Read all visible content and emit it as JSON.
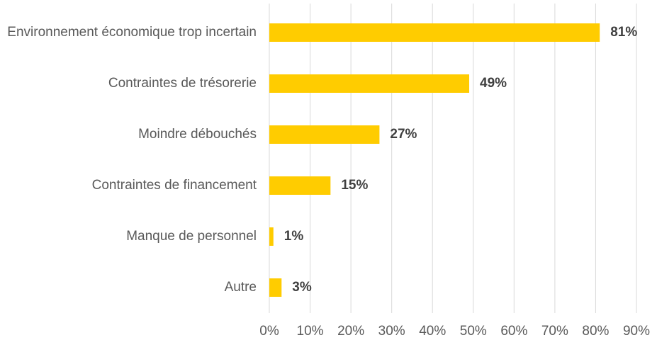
{
  "chart_data": {
    "type": "bar",
    "orientation": "horizontal",
    "categories": [
      "Environnement économique trop incertain",
      "Contraintes de trésorerie",
      "Moindre débouchés",
      "Contraintes de financement",
      "Manque de personnel",
      "Autre"
    ],
    "values": [
      81,
      49,
      27,
      15,
      1,
      3
    ],
    "value_labels": [
      "81%",
      "49%",
      "27%",
      "15%",
      "1%",
      "3%"
    ],
    "color": "#ffcc00",
    "xlim": [
      0,
      90
    ],
    "xticks": [
      {
        "value": 0,
        "label": "0%"
      },
      {
        "value": 10,
        "label": "10%"
      },
      {
        "value": 20,
        "label": "20%"
      },
      {
        "value": 30,
        "label": "30%"
      },
      {
        "value": 40,
        "label": "40%"
      },
      {
        "value": 50,
        "label": "50%"
      },
      {
        "value": 60,
        "label": "60%"
      },
      {
        "value": 70,
        "label": "70%"
      },
      {
        "value": 80,
        "label": "80%"
      },
      {
        "value": 90,
        "label": "90%"
      }
    ],
    "grid": true
  }
}
